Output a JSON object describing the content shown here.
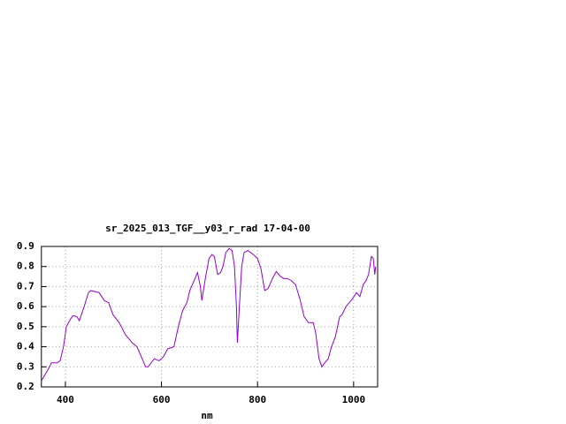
{
  "chart_data": {
    "type": "line",
    "title": "sr_2025_013_TGF__y03_r_rad 17-04-00",
    "x_label": "nm",
    "x": [
      350,
      367,
      371,
      383,
      389,
      396,
      402,
      411,
      416,
      424,
      429,
      439,
      448,
      453,
      470,
      481,
      490,
      499,
      512,
      525,
      539,
      549,
      558,
      567,
      572,
      585,
      595,
      604,
      613,
      626,
      635,
      644,
      653,
      659,
      668,
      675,
      681,
      684,
      692,
      699,
      705,
      710,
      717,
      723,
      728,
      734,
      741,
      747,
      752,
      756,
      758,
      761,
      767,
      772,
      780,
      791,
      800,
      807,
      815,
      822,
      831,
      839,
      848,
      855,
      862,
      870,
      879,
      888,
      897,
      906,
      916,
      921,
      928,
      934,
      940,
      947,
      954,
      962,
      971,
      976,
      984,
      991,
      998,
      1006,
      1013,
      1020,
      1026,
      1031,
      1037,
      1041,
      1044,
      1046
    ],
    "series": [
      {
        "name": "sr_2025_013_TGF__y03_r_rad 17-04-00",
        "color": "#9400d3",
        "values": [
          0.23,
          0.3,
          0.32,
          0.32,
          0.33,
          0.4,
          0.5,
          0.54,
          0.555,
          0.55,
          0.53,
          0.6,
          0.67,
          0.68,
          0.67,
          0.63,
          0.62,
          0.56,
          0.52,
          0.46,
          0.42,
          0.4,
          0.35,
          0.3,
          0.3,
          0.34,
          0.33,
          0.35,
          0.39,
          0.4,
          0.5,
          0.58,
          0.62,
          0.68,
          0.73,
          0.77,
          0.7,
          0.63,
          0.75,
          0.84,
          0.86,
          0.85,
          0.76,
          0.77,
          0.8,
          0.87,
          0.89,
          0.88,
          0.8,
          0.6,
          0.42,
          0.55,
          0.8,
          0.87,
          0.88,
          0.86,
          0.84,
          0.79,
          0.68,
          0.69,
          0.74,
          0.775,
          0.75,
          0.74,
          0.74,
          0.73,
          0.71,
          0.64,
          0.55,
          0.52,
          0.52,
          0.47,
          0.34,
          0.3,
          0.32,
          0.34,
          0.4,
          0.45,
          0.55,
          0.56,
          0.6,
          0.62,
          0.64,
          0.67,
          0.65,
          0.71,
          0.73,
          0.76,
          0.85,
          0.84,
          0.76,
          0.8
        ]
      }
    ],
    "xlim": [
      350,
      1050
    ],
    "ylim": [
      0.2,
      0.9
    ],
    "xticks": [
      400,
      600,
      800,
      1000
    ],
    "yticks": [
      0.2,
      0.3,
      0.4,
      0.5,
      0.6,
      0.7,
      0.8,
      0.9
    ],
    "grid": true
  }
}
